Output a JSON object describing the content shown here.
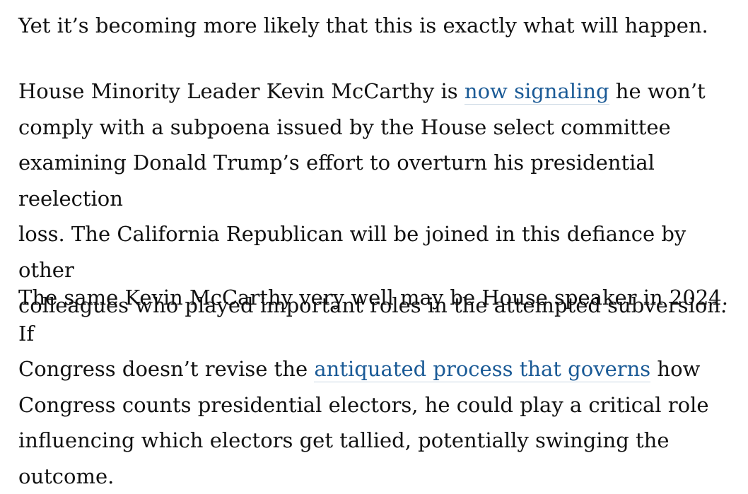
{
  "article": {
    "paragraphs": [
      {
        "lines": [
          {
            "before": "Yet it’s becoming more likely that this is exactly what will happen."
          }
        ]
      },
      {
        "lines": [
          {
            "before": "House Minority Leader Kevin McCarthy is ",
            "link": "now signaling",
            "after": " he won’t"
          },
          {
            "before": "comply with a subpoena issued by the House select committee"
          },
          {
            "before": "examining Donald Trump’s effort to overturn his presidential reelection"
          },
          {
            "before": "loss. The California Republican will be joined in this defiance by other"
          },
          {
            "before": "colleagues who played important roles in the attempted subversion."
          }
        ]
      },
      {
        "lines": [
          {
            "before": "The same Kevin McCarthy very well may be House speaker in 2024. If"
          },
          {
            "before": "Congress doesn’t revise the ",
            "link": "antiquated process that governs",
            "after": " how"
          },
          {
            "before": "Congress counts presidential electors, he could play a critical role"
          },
          {
            "before": "influencing which electors get tallied, potentially swinging the outcome."
          }
        ]
      }
    ],
    "colors": {
      "text": "#111111",
      "link": "#1a5a96",
      "background": "#ffffff"
    }
  }
}
